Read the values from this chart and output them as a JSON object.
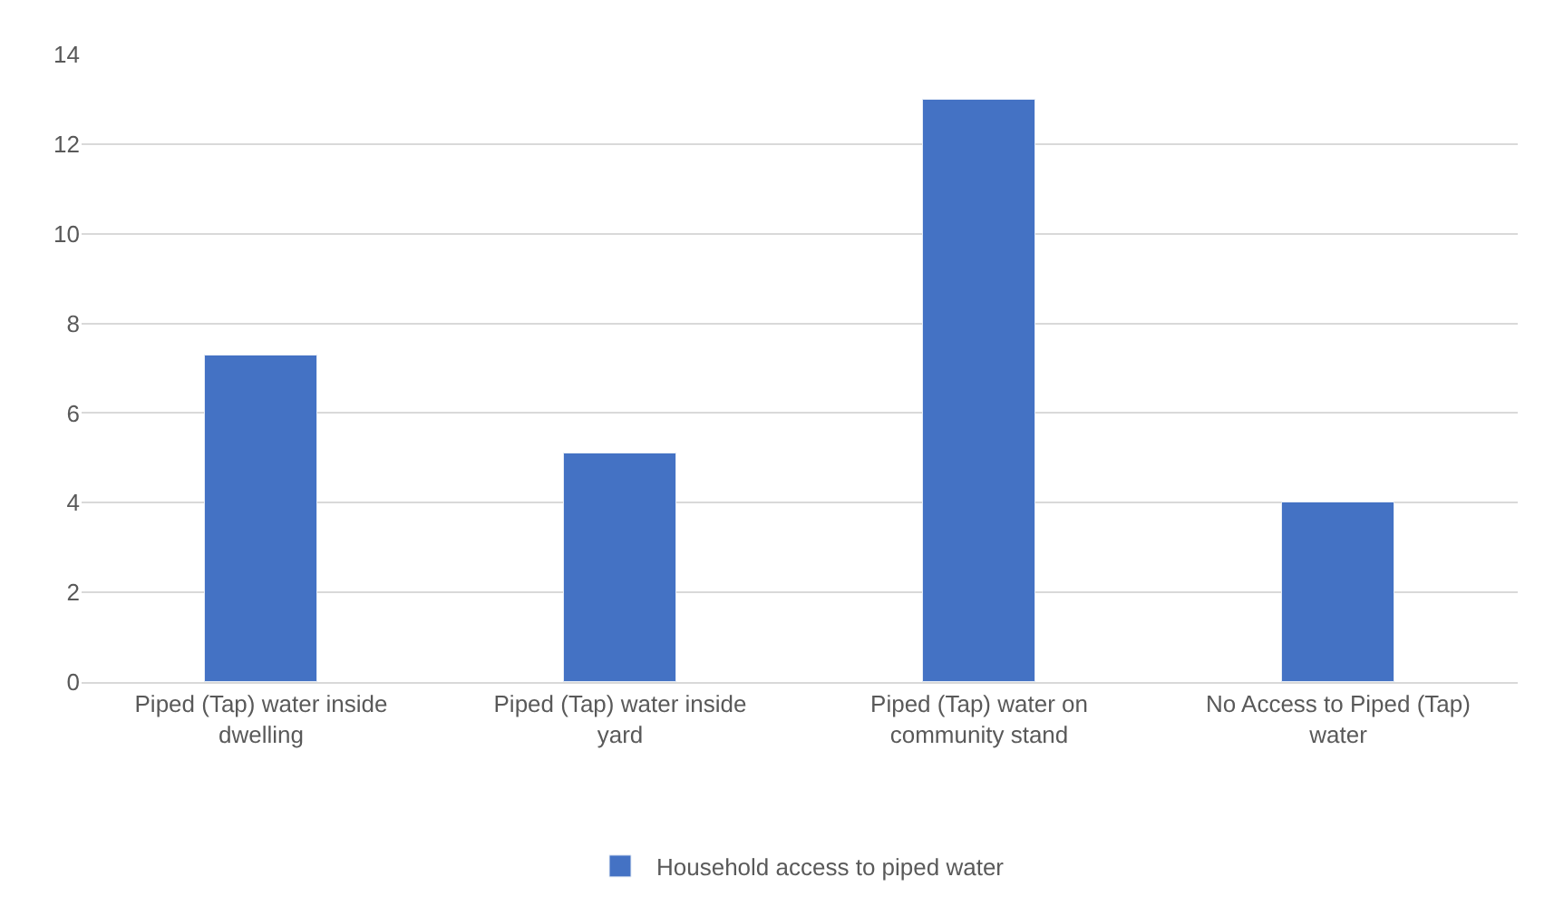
{
  "chart_data": {
    "type": "bar",
    "categories": [
      "Piped (Tap) water inside dwelling",
      "Piped (Tap) water inside yard",
      "Piped (Tap) water on community stand",
      "No Access to Piped (Tap) water"
    ],
    "series": [
      {
        "name": "Household access to piped water",
        "color": "#4472c4",
        "values": [
          7.3,
          5.1,
          13.0,
          4.0
        ]
      }
    ],
    "ylim": [
      0,
      14
    ],
    "yticks": [
      0,
      2,
      4,
      6,
      8,
      10,
      12,
      14
    ],
    "grid": "y",
    "legend": "bottom"
  }
}
